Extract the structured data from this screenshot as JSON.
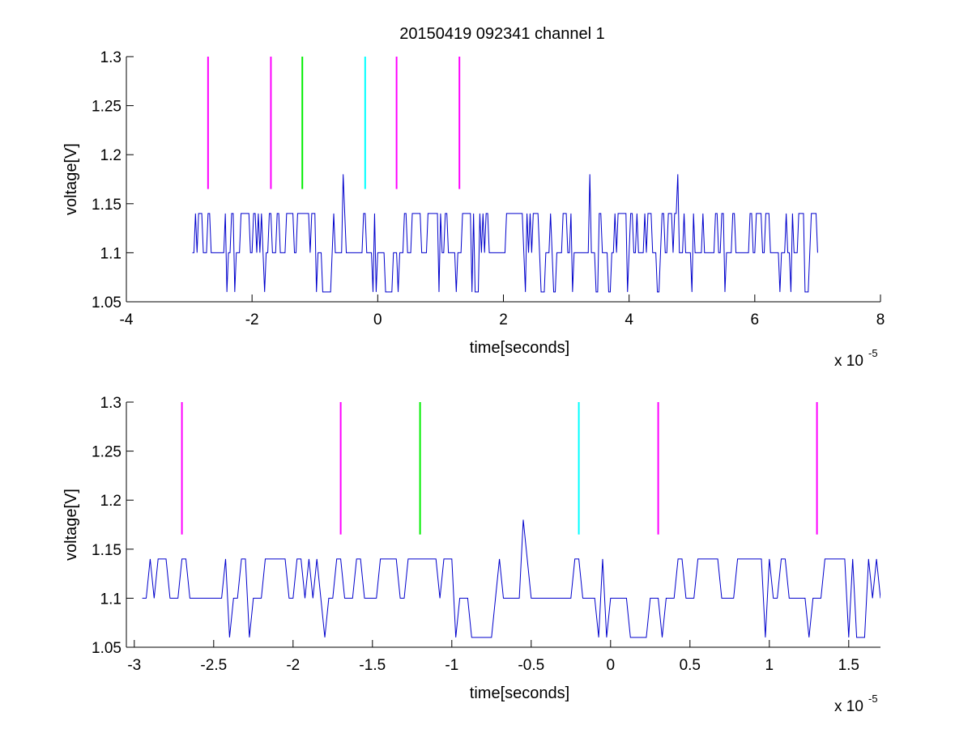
{
  "figure": {
    "title": "20150419 092341 channel 1"
  },
  "colors": {
    "signal": "#0000cc",
    "marker_magenta": "#ff00ff",
    "marker_green": "#00ee00",
    "marker_cyan": "#00ffff",
    "axes": "#000000",
    "background": "#ffffff"
  },
  "chart_data": [
    {
      "type": "line",
      "title": "20150419 092341 channel 1",
      "xlabel": "time[seconds]",
      "ylabel": "voltage[V]",
      "x_exponent_base": "x 10",
      "x_exponent_power": "-5",
      "xlim": [
        -4,
        8
      ],
      "ylim": [
        1.05,
        1.3
      ],
      "xticks": [
        -4,
        -2,
        0,
        2,
        4,
        6,
        8
      ],
      "xtick_labels": [
        "-4",
        "-2",
        "0",
        "2",
        "4",
        "6",
        "8"
      ],
      "yticks": [
        1.05,
        1.1,
        1.15,
        1.2,
        1.25,
        1.3
      ],
      "ytick_labels": [
        "1.05",
        "1.1",
        "1.15",
        "1.2",
        "1.25",
        "1.3"
      ],
      "grid": false,
      "signal_range": [
        -2.95,
        7.0
      ],
      "signal_levels": [
        1.06,
        1.1,
        1.14,
        1.18
      ],
      "spikes": [
        {
          "x": -0.56,
          "y": 1.18
        },
        {
          "x": 3.38,
          "y": 1.18
        },
        {
          "x": 4.78,
          "y": 1.18
        }
      ],
      "markers": [
        {
          "x": -2.7,
          "y_range": [
            1.165,
            1.3
          ],
          "color": "magenta"
        },
        {
          "x": -1.7,
          "y_range": [
            1.165,
            1.3
          ],
          "color": "magenta"
        },
        {
          "x": -1.2,
          "y_range": [
            1.165,
            1.3
          ],
          "color": "green"
        },
        {
          "x": -0.2,
          "y_range": [
            1.165,
            1.3
          ],
          "color": "cyan"
        },
        {
          "x": 0.3,
          "y_range": [
            1.165,
            1.3
          ],
          "color": "magenta"
        },
        {
          "x": 1.3,
          "y_range": [
            1.165,
            1.3
          ],
          "color": "magenta"
        }
      ]
    },
    {
      "type": "line",
      "title": "",
      "xlabel": "time[seconds]",
      "ylabel": "voltage[V]",
      "x_exponent_base": "x 10",
      "x_exponent_power": "-5",
      "xlim": [
        -3.05,
        1.7
      ],
      "ylim": [
        1.05,
        1.3
      ],
      "xticks": [
        -3,
        -2.5,
        -2,
        -1.5,
        -1,
        -0.5,
        0,
        0.5,
        1,
        1.5
      ],
      "xtick_labels": [
        "-3",
        "-2.5",
        "-2",
        "-1.5",
        "-1",
        "-0.5",
        "0",
        "0.5",
        "1",
        "1.5"
      ],
      "yticks": [
        1.05,
        1.1,
        1.15,
        1.2,
        1.25,
        1.3
      ],
      "ytick_labels": [
        "1.05",
        "1.1",
        "1.15",
        "1.2",
        "1.25",
        "1.3"
      ],
      "grid": false,
      "signal_range": [
        -2.95,
        1.7
      ],
      "signal_levels": [
        1.06,
        1.1,
        1.14,
        1.18
      ],
      "spikes": [
        {
          "x": -0.56,
          "y": 1.18
        }
      ],
      "markers": [
        {
          "x": -2.7,
          "y_range": [
            1.165,
            1.3
          ],
          "color": "magenta"
        },
        {
          "x": -1.7,
          "y_range": [
            1.165,
            1.3
          ],
          "color": "magenta"
        },
        {
          "x": -1.2,
          "y_range": [
            1.165,
            1.3
          ],
          "color": "green"
        },
        {
          "x": -0.2,
          "y_range": [
            1.165,
            1.3
          ],
          "color": "cyan"
        },
        {
          "x": 0.3,
          "y_range": [
            1.165,
            1.3
          ],
          "color": "magenta"
        },
        {
          "x": 1.3,
          "y_range": [
            1.165,
            1.3
          ],
          "color": "magenta"
        }
      ]
    }
  ]
}
